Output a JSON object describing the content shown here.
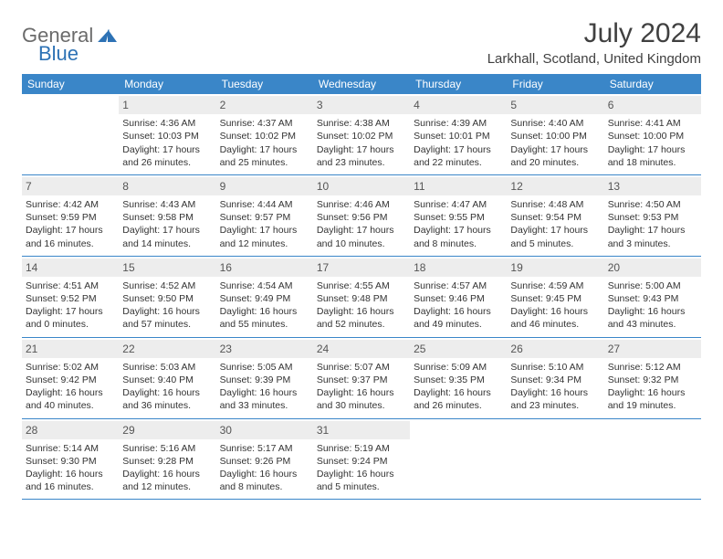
{
  "brand": {
    "text1": "General",
    "text2": "Blue"
  },
  "title": "July 2024",
  "location": "Larkhall, Scotland, United Kingdom",
  "colors": {
    "header_bg": "#3a86c8",
    "header_text": "#ffffff",
    "daynum_bg": "#ededed",
    "row_border": "#3a86c8",
    "brand_gray": "#6b6b6b",
    "brand_blue": "#2d72b5"
  },
  "day_headers": [
    "Sunday",
    "Monday",
    "Tuesday",
    "Wednesday",
    "Thursday",
    "Friday",
    "Saturday"
  ],
  "weeks": [
    [
      null,
      {
        "n": "1",
        "sr": "Sunrise: 4:36 AM",
        "ss": "Sunset: 10:03 PM",
        "d1": "Daylight: 17 hours",
        "d2": "and 26 minutes."
      },
      {
        "n": "2",
        "sr": "Sunrise: 4:37 AM",
        "ss": "Sunset: 10:02 PM",
        "d1": "Daylight: 17 hours",
        "d2": "and 25 minutes."
      },
      {
        "n": "3",
        "sr": "Sunrise: 4:38 AM",
        "ss": "Sunset: 10:02 PM",
        "d1": "Daylight: 17 hours",
        "d2": "and 23 minutes."
      },
      {
        "n": "4",
        "sr": "Sunrise: 4:39 AM",
        "ss": "Sunset: 10:01 PM",
        "d1": "Daylight: 17 hours",
        "d2": "and 22 minutes."
      },
      {
        "n": "5",
        "sr": "Sunrise: 4:40 AM",
        "ss": "Sunset: 10:00 PM",
        "d1": "Daylight: 17 hours",
        "d2": "and 20 minutes."
      },
      {
        "n": "6",
        "sr": "Sunrise: 4:41 AM",
        "ss": "Sunset: 10:00 PM",
        "d1": "Daylight: 17 hours",
        "d2": "and 18 minutes."
      }
    ],
    [
      {
        "n": "7",
        "sr": "Sunrise: 4:42 AM",
        "ss": "Sunset: 9:59 PM",
        "d1": "Daylight: 17 hours",
        "d2": "and 16 minutes."
      },
      {
        "n": "8",
        "sr": "Sunrise: 4:43 AM",
        "ss": "Sunset: 9:58 PM",
        "d1": "Daylight: 17 hours",
        "d2": "and 14 minutes."
      },
      {
        "n": "9",
        "sr": "Sunrise: 4:44 AM",
        "ss": "Sunset: 9:57 PM",
        "d1": "Daylight: 17 hours",
        "d2": "and 12 minutes."
      },
      {
        "n": "10",
        "sr": "Sunrise: 4:46 AM",
        "ss": "Sunset: 9:56 PM",
        "d1": "Daylight: 17 hours",
        "d2": "and 10 minutes."
      },
      {
        "n": "11",
        "sr": "Sunrise: 4:47 AM",
        "ss": "Sunset: 9:55 PM",
        "d1": "Daylight: 17 hours",
        "d2": "and 8 minutes."
      },
      {
        "n": "12",
        "sr": "Sunrise: 4:48 AM",
        "ss": "Sunset: 9:54 PM",
        "d1": "Daylight: 17 hours",
        "d2": "and 5 minutes."
      },
      {
        "n": "13",
        "sr": "Sunrise: 4:50 AM",
        "ss": "Sunset: 9:53 PM",
        "d1": "Daylight: 17 hours",
        "d2": "and 3 minutes."
      }
    ],
    [
      {
        "n": "14",
        "sr": "Sunrise: 4:51 AM",
        "ss": "Sunset: 9:52 PM",
        "d1": "Daylight: 17 hours",
        "d2": "and 0 minutes."
      },
      {
        "n": "15",
        "sr": "Sunrise: 4:52 AM",
        "ss": "Sunset: 9:50 PM",
        "d1": "Daylight: 16 hours",
        "d2": "and 57 minutes."
      },
      {
        "n": "16",
        "sr": "Sunrise: 4:54 AM",
        "ss": "Sunset: 9:49 PM",
        "d1": "Daylight: 16 hours",
        "d2": "and 55 minutes."
      },
      {
        "n": "17",
        "sr": "Sunrise: 4:55 AM",
        "ss": "Sunset: 9:48 PM",
        "d1": "Daylight: 16 hours",
        "d2": "and 52 minutes."
      },
      {
        "n": "18",
        "sr": "Sunrise: 4:57 AM",
        "ss": "Sunset: 9:46 PM",
        "d1": "Daylight: 16 hours",
        "d2": "and 49 minutes."
      },
      {
        "n": "19",
        "sr": "Sunrise: 4:59 AM",
        "ss": "Sunset: 9:45 PM",
        "d1": "Daylight: 16 hours",
        "d2": "and 46 minutes."
      },
      {
        "n": "20",
        "sr": "Sunrise: 5:00 AM",
        "ss": "Sunset: 9:43 PM",
        "d1": "Daylight: 16 hours",
        "d2": "and 43 minutes."
      }
    ],
    [
      {
        "n": "21",
        "sr": "Sunrise: 5:02 AM",
        "ss": "Sunset: 9:42 PM",
        "d1": "Daylight: 16 hours",
        "d2": "and 40 minutes."
      },
      {
        "n": "22",
        "sr": "Sunrise: 5:03 AM",
        "ss": "Sunset: 9:40 PM",
        "d1": "Daylight: 16 hours",
        "d2": "and 36 minutes."
      },
      {
        "n": "23",
        "sr": "Sunrise: 5:05 AM",
        "ss": "Sunset: 9:39 PM",
        "d1": "Daylight: 16 hours",
        "d2": "and 33 minutes."
      },
      {
        "n": "24",
        "sr": "Sunrise: 5:07 AM",
        "ss": "Sunset: 9:37 PM",
        "d1": "Daylight: 16 hours",
        "d2": "and 30 minutes."
      },
      {
        "n": "25",
        "sr": "Sunrise: 5:09 AM",
        "ss": "Sunset: 9:35 PM",
        "d1": "Daylight: 16 hours",
        "d2": "and 26 minutes."
      },
      {
        "n": "26",
        "sr": "Sunrise: 5:10 AM",
        "ss": "Sunset: 9:34 PM",
        "d1": "Daylight: 16 hours",
        "d2": "and 23 minutes."
      },
      {
        "n": "27",
        "sr": "Sunrise: 5:12 AM",
        "ss": "Sunset: 9:32 PM",
        "d1": "Daylight: 16 hours",
        "d2": "and 19 minutes."
      }
    ],
    [
      {
        "n": "28",
        "sr": "Sunrise: 5:14 AM",
        "ss": "Sunset: 9:30 PM",
        "d1": "Daylight: 16 hours",
        "d2": "and 16 minutes."
      },
      {
        "n": "29",
        "sr": "Sunrise: 5:16 AM",
        "ss": "Sunset: 9:28 PM",
        "d1": "Daylight: 16 hours",
        "d2": "and 12 minutes."
      },
      {
        "n": "30",
        "sr": "Sunrise: 5:17 AM",
        "ss": "Sunset: 9:26 PM",
        "d1": "Daylight: 16 hours",
        "d2": "and 8 minutes."
      },
      {
        "n": "31",
        "sr": "Sunrise: 5:19 AM",
        "ss": "Sunset: 9:24 PM",
        "d1": "Daylight: 16 hours",
        "d2": "and 5 minutes."
      },
      null,
      null,
      null
    ]
  ]
}
